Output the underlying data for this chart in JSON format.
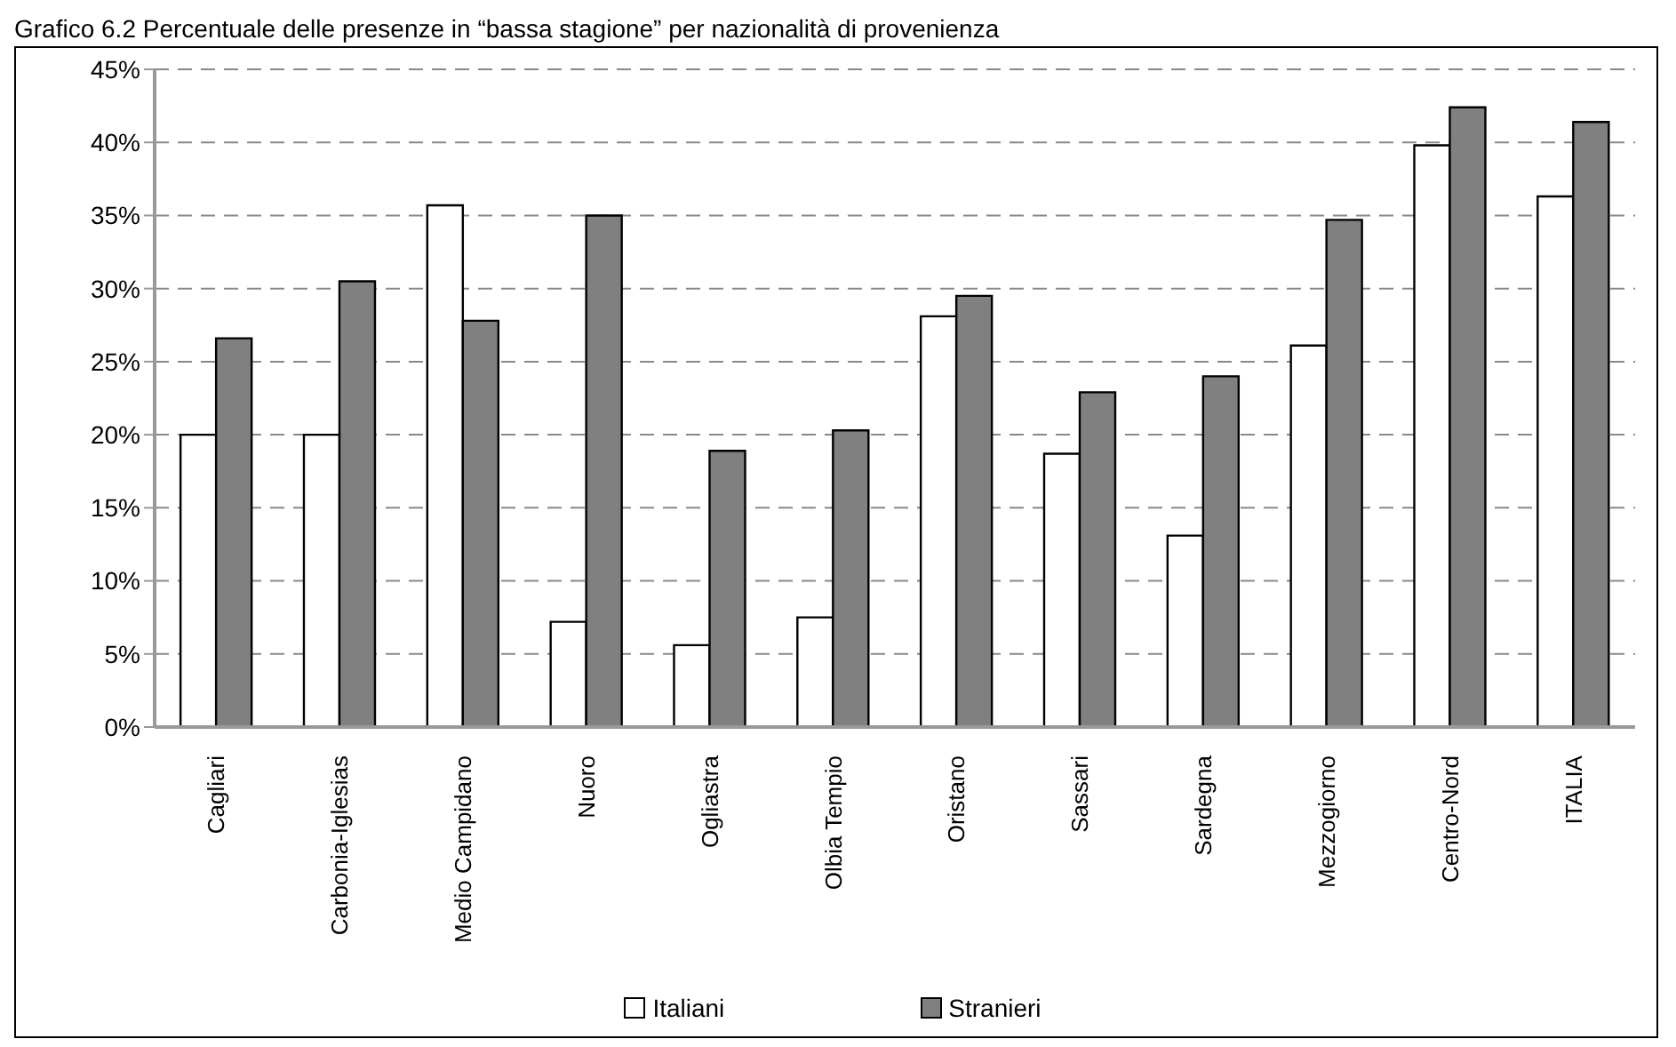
{
  "chart_data": {
    "type": "bar",
    "title": "Grafico 6.2     Percentuale delle presenze in “bassa stagione” per nazionalità di provenienza",
    "categories": [
      "Cagliari",
      "Carbonia-Iglesias",
      "Medio Campidano",
      "Nuoro",
      "Ogliastra",
      "Olbia Tempio",
      "Oristano",
      "Sassari",
      "Sardegna",
      "Mezzogiorno",
      "Centro-Nord",
      "ITALIA"
    ],
    "series": [
      {
        "name": "Italiani",
        "color": "#ffffff",
        "values": [
          20.0,
          20.0,
          35.7,
          7.2,
          5.6,
          7.5,
          28.1,
          18.7,
          13.1,
          26.1,
          39.8,
          36.3
        ]
      },
      {
        "name": "Stranieri",
        "color": "#808080",
        "values": [
          26.6,
          30.5,
          27.8,
          35.0,
          18.9,
          20.3,
          29.5,
          22.9,
          24.0,
          34.7,
          42.4,
          41.4
        ]
      }
    ],
    "ylim": [
      0,
      45
    ],
    "yticks": [
      {
        "value": 0,
        "label": "0%"
      },
      {
        "value": 5,
        "label": "5%"
      },
      {
        "value": 10,
        "label": "10%"
      },
      {
        "value": 15,
        "label": "15%"
      },
      {
        "value": 20,
        "label": "20%"
      },
      {
        "value": 25,
        "label": "25%"
      },
      {
        "value": 30,
        "label": "30%"
      },
      {
        "value": 35,
        "label": "35%"
      },
      {
        "value": 40,
        "label": "40%"
      },
      {
        "value": 45,
        "label": "45%"
      }
    ],
    "grid": "y",
    "legend": "bottom"
  }
}
